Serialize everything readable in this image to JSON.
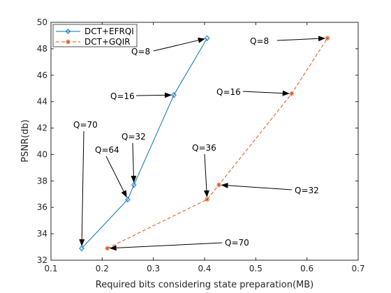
{
  "chart_data": {
    "type": "line",
    "xlabel": "Required bits considering state preparation(MB)",
    "ylabel": "PSNR(db)",
    "xlim": [
      0.1,
      0.7
    ],
    "ylim": [
      32,
      50
    ],
    "xticks": [
      "0.1",
      "0.2",
      "0.3",
      "0.4",
      "0.5",
      "0.6",
      "0.7"
    ],
    "yticks": [
      "32",
      "34",
      "36",
      "38",
      "40",
      "42",
      "44",
      "46",
      "48",
      "50"
    ],
    "legend_position": "top-left",
    "series": [
      {
        "name": "DCT+EFRQI",
        "color": "#0072BD",
        "marker": "diamond",
        "style": "solid",
        "x": [
          0.16,
          0.25,
          0.262,
          0.34,
          0.405
        ],
        "y": [
          32.9,
          36.6,
          37.7,
          44.5,
          48.8
        ]
      },
      {
        "name": "DCT+GQIR",
        "color": "#D95319",
        "marker": "star",
        "style": "dashed",
        "x": [
          0.21,
          0.405,
          0.428,
          0.57,
          0.64
        ],
        "y": [
          32.9,
          36.6,
          37.7,
          44.6,
          48.8
        ]
      }
    ],
    "annotations": [
      {
        "text": "Q=8",
        "series": 0,
        "point": 4
      },
      {
        "text": "Q=16",
        "series": 0,
        "point": 3
      },
      {
        "text": "Q=32",
        "series": 0,
        "point": 2
      },
      {
        "text": "Q=64",
        "series": 0,
        "point": 1
      },
      {
        "text": "Q=70",
        "series": 0,
        "point": 0
      },
      {
        "text": "Q=8",
        "series": 1,
        "point": 4
      },
      {
        "text": "Q=16",
        "series": 1,
        "point": 3
      },
      {
        "text": "Q=36",
        "series": 1,
        "point": 1
      },
      {
        "text": "Q=32",
        "series": 1,
        "point": 2
      },
      {
        "text": "Q=70",
        "series": 1,
        "point": 0
      }
    ]
  }
}
